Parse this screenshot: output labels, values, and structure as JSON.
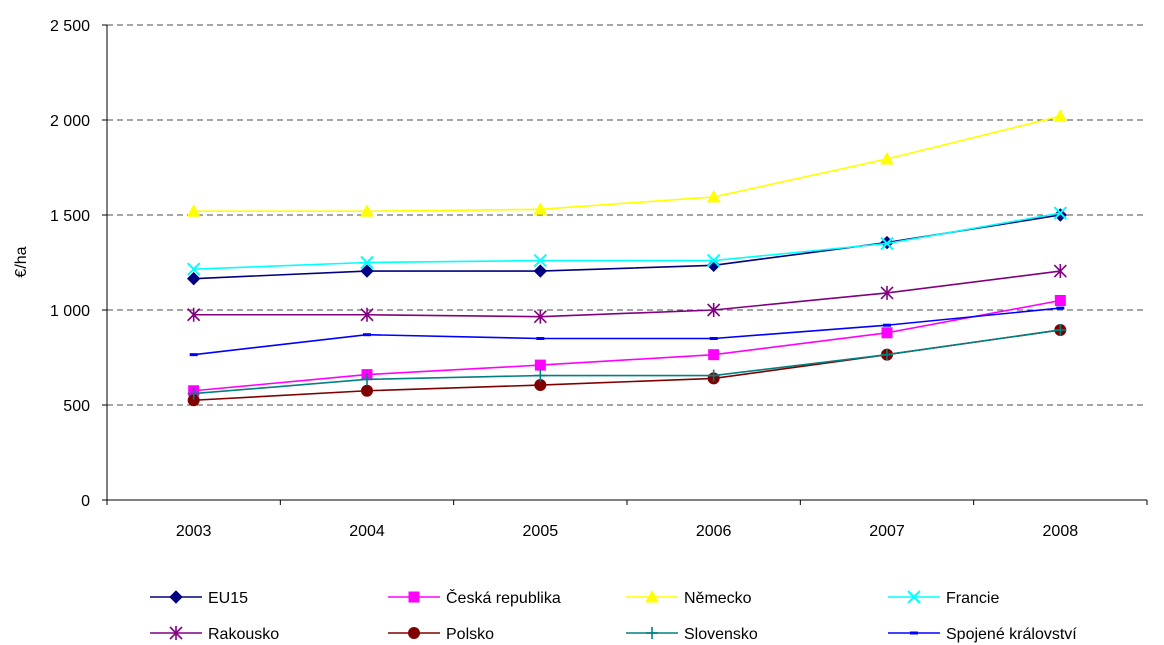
{
  "chart_data": {
    "type": "line",
    "title": "",
    "xlabel": "",
    "ylabel": "€/ha",
    "ylim": [
      0,
      2500
    ],
    "yticks": [
      0,
      500,
      1000,
      1500,
      2000,
      2500
    ],
    "ytick_labels": [
      "0",
      "500",
      "1 000",
      "1 500",
      "2 000",
      "2 500"
    ],
    "categories": [
      "2003",
      "2004",
      "2005",
      "2006",
      "2007",
      "2008"
    ],
    "grid": "horizontal dashed",
    "legend_position": "bottom",
    "series": [
      {
        "name": "EU15",
        "color": "#000080",
        "marker": "diamond",
        "values": [
          1165,
          1205,
          1205,
          1235,
          1355,
          1500
        ]
      },
      {
        "name": "Česká republika",
        "color": "#ff00ff",
        "marker": "square",
        "values": [
          575,
          660,
          710,
          765,
          880,
          1050
        ]
      },
      {
        "name": "Německo",
        "color": "#ffff00",
        "marker": "triangle",
        "values": [
          1520,
          1520,
          1530,
          1595,
          1795,
          2020
        ]
      },
      {
        "name": "Francie",
        "color": "#00ffff",
        "marker": "x",
        "values": [
          1215,
          1250,
          1260,
          1260,
          1350,
          1510
        ]
      },
      {
        "name": "Rakousko",
        "color": "#800080",
        "marker": "star",
        "values": [
          975,
          975,
          965,
          1000,
          1090,
          1205
        ]
      },
      {
        "name": "Polsko",
        "color": "#800000",
        "marker": "circle",
        "values": [
          525,
          575,
          605,
          640,
          765,
          895
        ]
      },
      {
        "name": "Slovensko",
        "color": "#008080",
        "marker": "plus",
        "values": [
          560,
          635,
          655,
          655,
          765,
          895
        ]
      },
      {
        "name": "Spojené království",
        "color": "#0000ff",
        "marker": "dash",
        "values": [
          765,
          870,
          850,
          850,
          920,
          1010
        ]
      }
    ]
  }
}
